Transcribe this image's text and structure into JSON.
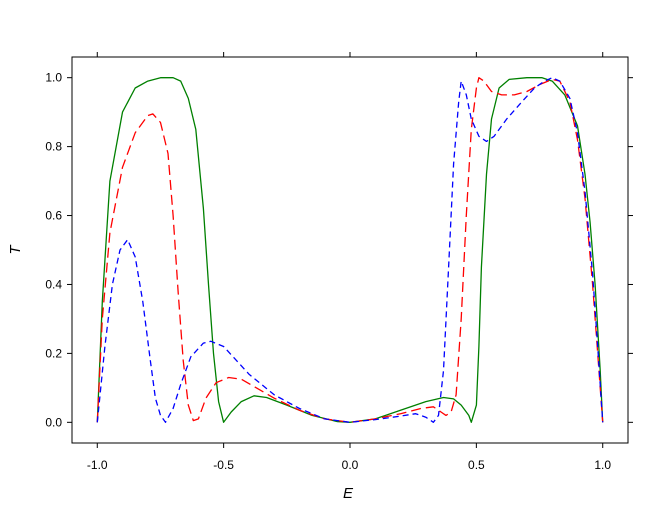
{
  "chart_data": {
    "type": "line",
    "xlabel": "E",
    "ylabel": "T",
    "xlim": [
      -1.1,
      1.1
    ],
    "ylim": [
      -0.06,
      1.06
    ],
    "xticks": [
      -1.0,
      -0.5,
      0.0,
      0.5,
      1.0
    ],
    "xtick_labels": [
      "-1.0",
      "-0.5",
      "0.0",
      "0.5",
      "1.0"
    ],
    "yticks": [
      0.0,
      0.2,
      0.4,
      0.6,
      0.8,
      1.0
    ],
    "ytick_labels": [
      "0.0",
      "0.2",
      "0.4",
      "0.6",
      "0.8",
      "1.0"
    ],
    "grid": false,
    "series": [
      {
        "color": "#008000",
        "style": "solid",
        "points": [
          [
            -1.0,
            0.0
          ],
          [
            -0.98,
            0.35
          ],
          [
            -0.95,
            0.7
          ],
          [
            -0.9,
            0.9
          ],
          [
            -0.85,
            0.97
          ],
          [
            -0.8,
            0.99
          ],
          [
            -0.75,
            1.0
          ],
          [
            -0.7,
            1.0
          ],
          [
            -0.67,
            0.99
          ],
          [
            -0.64,
            0.94
          ],
          [
            -0.61,
            0.85
          ],
          [
            -0.58,
            0.62
          ],
          [
            -0.56,
            0.4
          ],
          [
            -0.54,
            0.2
          ],
          [
            -0.52,
            0.06
          ],
          [
            -0.5,
            0.0
          ],
          [
            -0.47,
            0.03
          ],
          [
            -0.43,
            0.06
          ],
          [
            -0.38,
            0.077
          ],
          [
            -0.33,
            0.072
          ],
          [
            -0.25,
            0.05
          ],
          [
            -0.15,
            0.02
          ],
          [
            -0.05,
            0.002
          ],
          [
            0.0,
            0.0
          ],
          [
            0.1,
            0.01
          ],
          [
            0.2,
            0.035
          ],
          [
            0.3,
            0.06
          ],
          [
            0.37,
            0.072
          ],
          [
            0.41,
            0.068
          ],
          [
            0.44,
            0.05
          ],
          [
            0.47,
            0.02
          ],
          [
            0.48,
            0.0
          ],
          [
            0.5,
            0.05
          ],
          [
            0.51,
            0.22
          ],
          [
            0.52,
            0.45
          ],
          [
            0.54,
            0.72
          ],
          [
            0.56,
            0.88
          ],
          [
            0.59,
            0.97
          ],
          [
            0.63,
            0.995
          ],
          [
            0.7,
            1.0
          ],
          [
            0.76,
            1.0
          ],
          [
            0.8,
            0.99
          ],
          [
            0.85,
            0.95
          ],
          [
            0.9,
            0.86
          ],
          [
            0.93,
            0.72
          ],
          [
            0.95,
            0.58
          ],
          [
            0.97,
            0.4
          ],
          [
            0.99,
            0.15
          ],
          [
            1.0,
            0.0
          ]
        ]
      },
      {
        "color": "#ff0000",
        "style": "long-dash",
        "points": [
          [
            -1.0,
            0.0
          ],
          [
            -0.98,
            0.3
          ],
          [
            -0.95,
            0.55
          ],
          [
            -0.9,
            0.74
          ],
          [
            -0.85,
            0.84
          ],
          [
            -0.8,
            0.89
          ],
          [
            -0.78,
            0.895
          ],
          [
            -0.75,
            0.87
          ],
          [
            -0.72,
            0.78
          ],
          [
            -0.7,
            0.6
          ],
          [
            -0.68,
            0.38
          ],
          [
            -0.66,
            0.18
          ],
          [
            -0.64,
            0.05
          ],
          [
            -0.62,
            0.005
          ],
          [
            -0.6,
            0.01
          ],
          [
            -0.57,
            0.07
          ],
          [
            -0.53,
            0.115
          ],
          [
            -0.48,
            0.13
          ],
          [
            -0.43,
            0.125
          ],
          [
            -0.37,
            0.1
          ],
          [
            -0.3,
            0.07
          ],
          [
            -0.2,
            0.035
          ],
          [
            -0.1,
            0.01
          ],
          [
            0.0,
            0.0
          ],
          [
            0.1,
            0.01
          ],
          [
            0.2,
            0.025
          ],
          [
            0.28,
            0.04
          ],
          [
            0.33,
            0.045
          ],
          [
            0.36,
            0.03
          ],
          [
            0.38,
            0.02
          ],
          [
            0.4,
            0.03
          ],
          [
            0.42,
            0.08
          ],
          [
            0.44,
            0.3
          ],
          [
            0.46,
            0.6
          ],
          [
            0.48,
            0.85
          ],
          [
            0.5,
            0.97
          ],
          [
            0.51,
            1.0
          ],
          [
            0.53,
            0.99
          ],
          [
            0.56,
            0.96
          ],
          [
            0.6,
            0.95
          ],
          [
            0.65,
            0.95
          ],
          [
            0.7,
            0.96
          ],
          [
            0.75,
            0.98
          ],
          [
            0.8,
            0.995
          ],
          [
            0.83,
            0.99
          ],
          [
            0.87,
            0.93
          ],
          [
            0.9,
            0.82
          ],
          [
            0.93,
            0.65
          ],
          [
            0.96,
            0.4
          ],
          [
            0.98,
            0.2
          ],
          [
            1.0,
            0.0
          ]
        ]
      },
      {
        "color": "#0000ff",
        "style": "short-dash",
        "points": [
          [
            -1.0,
            0.0
          ],
          [
            -0.97,
            0.22
          ],
          [
            -0.94,
            0.4
          ],
          [
            -0.91,
            0.5
          ],
          [
            -0.88,
            0.53
          ],
          [
            -0.85,
            0.48
          ],
          [
            -0.82,
            0.35
          ],
          [
            -0.79,
            0.18
          ],
          [
            -0.77,
            0.07
          ],
          [
            -0.75,
            0.02
          ],
          [
            -0.73,
            0.0
          ],
          [
            -0.7,
            0.04
          ],
          [
            -0.67,
            0.11
          ],
          [
            -0.63,
            0.19
          ],
          [
            -0.58,
            0.23
          ],
          [
            -0.55,
            0.235
          ],
          [
            -0.5,
            0.22
          ],
          [
            -0.45,
            0.18
          ],
          [
            -0.4,
            0.14
          ],
          [
            -0.3,
            0.08
          ],
          [
            -0.2,
            0.04
          ],
          [
            -0.1,
            0.01
          ],
          [
            0.0,
            0.0
          ],
          [
            0.1,
            0.008
          ],
          [
            0.2,
            0.018
          ],
          [
            0.26,
            0.025
          ],
          [
            0.3,
            0.015
          ],
          [
            0.33,
            0.0
          ],
          [
            0.35,
            0.02
          ],
          [
            0.37,
            0.15
          ],
          [
            0.39,
            0.45
          ],
          [
            0.41,
            0.75
          ],
          [
            0.43,
            0.93
          ],
          [
            0.44,
            0.99
          ],
          [
            0.46,
            0.95
          ],
          [
            0.48,
            0.88
          ],
          [
            0.51,
            0.83
          ],
          [
            0.54,
            0.815
          ],
          [
            0.57,
            0.83
          ],
          [
            0.62,
            0.88
          ],
          [
            0.68,
            0.93
          ],
          [
            0.73,
            0.97
          ],
          [
            0.77,
            0.99
          ],
          [
            0.8,
            1.0
          ],
          [
            0.83,
            0.99
          ],
          [
            0.87,
            0.94
          ],
          [
            0.9,
            0.84
          ],
          [
            0.93,
            0.67
          ],
          [
            0.96,
            0.43
          ],
          [
            0.98,
            0.22
          ],
          [
            1.0,
            0.0
          ]
        ]
      }
    ]
  }
}
